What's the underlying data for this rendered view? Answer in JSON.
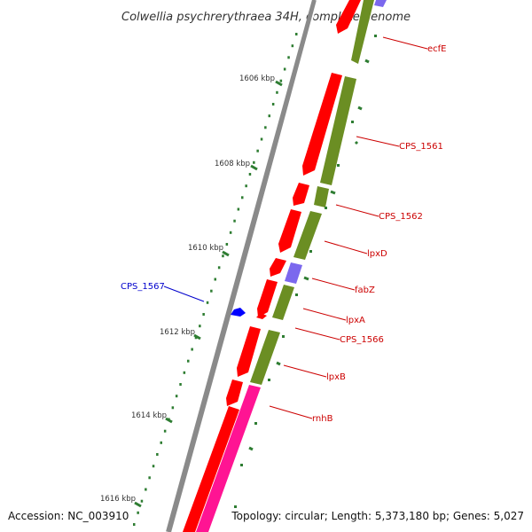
{
  "title": "Colwellia psychrerythraea 34H, complete genome",
  "footer": {
    "accession": "Accession: NC_003910",
    "summary": "Topology: circular; Length: 5,373,180 bp; Genes: 5,027"
  },
  "kbp_ticks": [
    "1606 kbp",
    "1608 kbp",
    "1610 kbp",
    "1612 kbp",
    "1614 kbp",
    "1616 kbp"
  ],
  "gene_labels": [
    "ecfE",
    "CPS_1561",
    "CPS_1562",
    "lpxD",
    "fabZ",
    "lpxA",
    "CPS_1566",
    "lpxB",
    "rnhB"
  ],
  "left_label": "CPS_1567",
  "colors": {
    "backbone": "#8a8a8a",
    "red_gene": "#ff0000",
    "cds": "#6b8e23",
    "purple_cds": "#7b68ee",
    "magenta": "#ff1493",
    "tick": "#2e7d32",
    "label_red": "#cc0000",
    "label_blue": "#0000cc",
    "blue_feature": "#0000ff"
  }
}
